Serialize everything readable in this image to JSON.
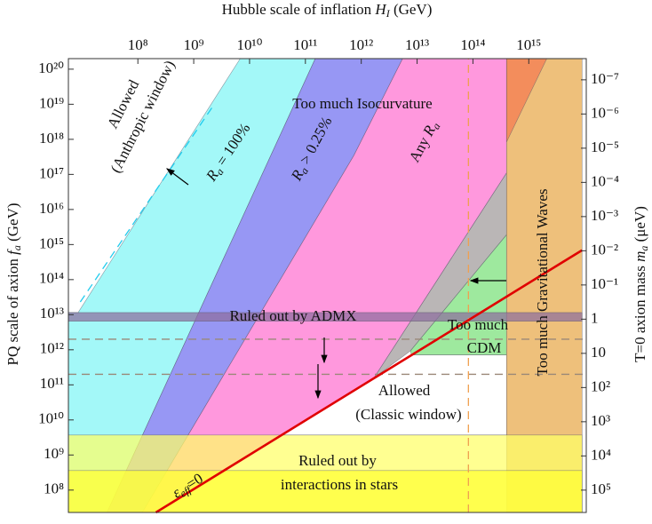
{
  "chart_data": {
    "type": "region",
    "xlabel": [
      "Hubble scale of inflation ",
      "H",
      "I",
      " (GeV)"
    ],
    "ylabel": [
      "PQ scale of axion ",
      "f",
      "a",
      " (GeV)"
    ],
    "y2label": [
      "T=0 axion mass ",
      "m",
      "a",
      " (μeV)"
    ],
    "log_x": true,
    "log_y": true,
    "xlim": [
      5700000.0,
      1.07e+16
    ],
    "ylim": [
      23000000.0,
      2e+20
    ],
    "y2lim": [
      450000.0,
      2.4e-08
    ],
    "xticks": [
      {
        "value": 100000000.0,
        "label": "10⁸"
      },
      {
        "value": 1000000000.0,
        "label": "10⁹"
      },
      {
        "value": 10000000000.0,
        "label": "10¹⁰"
      },
      {
        "value": 100000000000.0,
        "label": "10¹¹"
      },
      {
        "value": 1000000000000.0,
        "label": "10¹²"
      },
      {
        "value": 10000000000000.0,
        "label": "10¹³"
      },
      {
        "value": 100000000000000.0,
        "label": "10¹⁴"
      },
      {
        "value": 1000000000000000.0,
        "label": "10¹⁵"
      }
    ],
    "yticks": [
      {
        "value": 100000000.0,
        "label": "10⁸"
      },
      {
        "value": 1000000000.0,
        "label": "10⁹"
      },
      {
        "value": 10000000000.0,
        "label": "10¹⁰"
      },
      {
        "value": 100000000000.0,
        "label": "10¹¹"
      },
      {
        "value": 1000000000000.0,
        "label": "10¹²"
      },
      {
        "value": 10000000000000.0,
        "label": "10¹³"
      },
      {
        "value": 100000000000000.0,
        "label": "10¹⁴"
      },
      {
        "value": 1000000000000000.0,
        "label": "10¹⁵"
      },
      {
        "value": 1e+16,
        "label": "10¹⁶"
      },
      {
        "value": 1e+17,
        "label": "10¹⁷"
      },
      {
        "value": 1e+18,
        "label": "10¹⁸"
      },
      {
        "value": 1e+19,
        "label": "10¹⁹"
      },
      {
        "value": 1e+20,
        "label": "10²⁰"
      }
    ],
    "y2ticks": [
      {
        "value": 1e-07,
        "label": "10⁻⁷"
      },
      {
        "value": 1e-06,
        "label": "10⁻⁶"
      },
      {
        "value": 1e-05,
        "label": "10⁻⁵"
      },
      {
        "value": 0.0001,
        "label": "10⁻⁴"
      },
      {
        "value": 0.001,
        "label": "10⁻³"
      },
      {
        "value": 0.01,
        "label": "10⁻²"
      },
      {
        "value": 0.1,
        "label": "10⁻¹"
      },
      1,
      10,
      {
        "value": 100.0,
        "label": "10²"
      },
      {
        "value": 1000.0,
        "label": "10³"
      },
      {
        "value": 10000.0,
        "label": "10⁴"
      },
      {
        "value": 100000.0,
        "label": "10⁵"
      }
    ],
    "regions": [
      {
        "color": "#7ff5f5",
        "x": [
          5700000.0,
          8500000.0,
          6800000000.0,
          150000000000.0,
          28000000.0,
          5700000.0
        ],
        "values": [
          11500000000000.0,
          11500000000000.0,
          2e+20,
          2e+20,
          23000000.0,
          23000000.0
        ]
      },
      {
        "color": "#6f6ff0",
        "x": [
          150000000000.0,
          5500000000000.0,
          740000000000.0,
          120000000.0,
          28000000.0
        ],
        "values": [
          2e+20,
          2e+20,
          3.5e+17,
          23000000.0,
          23000000.0
        ]
      },
      {
        "color": "#ff70d0",
        "x": [
          5500000000000.0,
          400000000000000.0,
          400000000000000.0,
          1700000000000.0,
          210000000.0,
          120000000.0,
          740000000000.0
        ],
        "values": [
          2e+20,
          2e+20,
          1.1e+17,
          160000000000.0,
          23000000.0,
          23000000.0,
          3.5e+17
        ]
      },
      {
        "color": "#a09a9a",
        "x": [
          400000000000000.0,
          400000000000000.0,
          7600000000000.0,
          1700000000000.0
        ],
        "values": [
          1.1e+17,
          1900000000000000.0,
          930000000000.0,
          160000000000.0
        ]
      },
      {
        "color": "#78e078",
        "x": [
          400000000000000.0,
          400000000000000.0,
          7900000000000.0,
          7600000000000.0
        ],
        "values": [
          1900000000000000.0,
          710000000000.0,
          710000000000.0,
          930000000000.0
        ]
      },
      {
        "color": "#ffffff",
        "x": [
          38000000000.0,
          7900000000000.0,
          400000000000000.0,
          400000000000000.0
        ],
        "values": [
          3700000000.0,
          710000000000.0,
          710000000000.0,
          3700000000.0
        ]
      },
      {
        "color": "#e8a848",
        "x": [
          400000000000000.0,
          9000000000000000.0,
          9000000000000000.0,
          400000000000000.0
        ],
        "values": [
          2e+20,
          2e+20,
          23000000.0,
          23000000.0
        ]
      },
      {
        "color": "#f57850",
        "x": [
          400000000000000.0,
          2100000000000000.0,
          400000000000000.0
        ],
        "values": [
          2e+20,
          2e+20,
          8.4e+17
        ]
      },
      {
        "color": "#8e6e9e",
        "x": [
          5700000.0,
          9000000000000000.0,
          9000000000000000.0,
          5700000.0
        ],
        "values": [
          11500000000000.0,
          11500000000000.0,
          6500000000000.0,
          6500000000000.0
        ]
      },
      {
        "color": "#ffff66",
        "x": [
          5700000.0,
          9000000000000000.0,
          9000000000000000.0,
          5700000.0
        ],
        "values": [
          3700000000.0,
          3700000000.0,
          23000000.0,
          23000000.0
        ]
      },
      {
        "color": "#ffff33",
        "x": [
          5700000.0,
          9000000000000000.0,
          9000000000000000.0,
          5700000.0
        ],
        "values": [
          360000000.0,
          360000000.0,
          23000000.0,
          23000000.0
        ]
      }
    ],
    "lines": [
      {
        "color": "#9a8878",
        "dash": true,
        "x": [
          5700000.0,
          1.07e+16
        ],
        "values": [
          2000000000000.0,
          2000000000000.0
        ]
      },
      {
        "color": "#9a8878",
        "dash": true,
        "x": [
          5700000.0,
          1.07e+16
        ],
        "values": [
          200000000000.0,
          200000000000.0
        ]
      },
      {
        "color": "#f0a050",
        "dash": true,
        "x": [
          83000000000000.0,
          83000000000000.0
        ],
        "values": [
          23000000.0,
          2e+20
        ]
      },
      {
        "color": "#22ccee",
        "dash": true,
        "x": [
          9300000.0,
          2200000000.0
        ],
        "values": [
          23000000000000.0,
          8.7e+18
        ]
      },
      {
        "color": "#e00000",
        "dash": false,
        "x": [
          210000000.0,
          9000000000000000.0
        ],
        "values": [
          23000000.0,
          690000000000000.0
        ]
      }
    ],
    "annotations": [
      [
        "Allowed"
      ],
      [
        "(Anthropic window)"
      ],
      [
        "Too much Isocurvature"
      ],
      [
        "R",
        "a",
        " = 100%"
      ],
      [
        "R",
        "a",
        " > 0.25%"
      ],
      [
        "Any ",
        "R",
        "a"
      ],
      [
        "Too much Gravitational Waves"
      ],
      [
        "Too much"
      ],
      [
        "CDM"
      ],
      [
        "Ruled out by ADMX"
      ],
      [
        "Allowed"
      ],
      [
        "(Classic window)"
      ],
      [
        "Ruled out by"
      ],
      [
        "interactions in stars"
      ],
      [
        "ε",
        "eff",
        "=0"
      ]
    ]
  }
}
